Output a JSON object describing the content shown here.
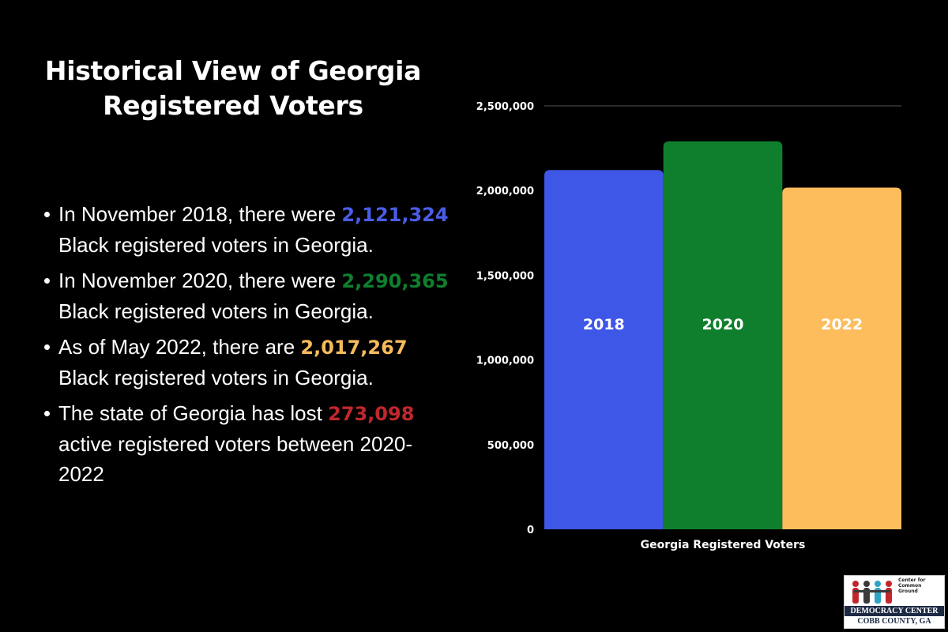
{
  "title": "Historical View of Georgia Registered Voters",
  "bullets": [
    {
      "pre": "In November 2018, there were ",
      "value": "2,121,324",
      "post": " Black registered voters in Georgia.",
      "color": "#4a5de8"
    },
    {
      "pre": "In November 2020, there were ",
      "value": "2,290,365",
      "post": " Black registered voters in Georgia.",
      "color": "#0f7f2e"
    },
    {
      "pre": "As of May 2022, there are ",
      "value": "2,017,267",
      "post": " Black  registered voters in Georgia.",
      "color": "#f6bb5c"
    },
    {
      "pre": "The state of Georgia has lost ",
      "value": "273,098",
      "post": " active registered voters between 2020-2022",
      "color": "#c0272d"
    }
  ],
  "chart_data": {
    "type": "bar",
    "categories": [
      "2018",
      "2020",
      "2022"
    ],
    "values": [
      2121324,
      2290365,
      2017267
    ],
    "colors": [
      "#3e57e6",
      "#0f7f2e",
      "#fdbd5d"
    ],
    "xlabel": "Georgia Registered Voters",
    "ylabel": "",
    "ylim": [
      0,
      2500000
    ],
    "yticks": [
      "0",
      "500,000",
      "1,000,000",
      "1,500,000",
      "2,000,000",
      "2,500,000"
    ],
    "grid": "top-line-only",
    "legend": "none"
  },
  "logo": {
    "small_text": "Center for Common Ground",
    "band_text": "DEMOCRACY CENTER",
    "bottom_text": "COBB COUNTY, GA"
  }
}
